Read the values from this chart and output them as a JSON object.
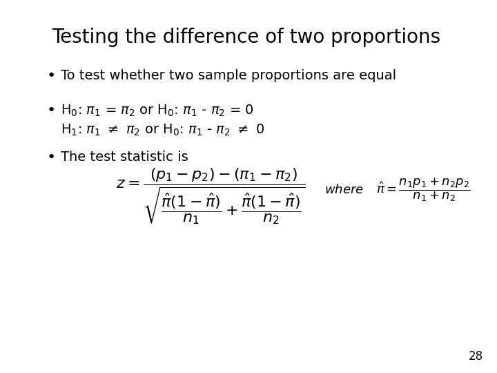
{
  "title": "Testing the difference of two proportions",
  "bullet1": "To test whether two sample proportions are equal",
  "bullet2_line1": "H$_0$: $\\pi_1$ = $\\pi_2$ or H$_0$: $\\pi_1$ - $\\pi_2$ = 0",
  "bullet2_line2": "H$_1$: $\\pi_1$ $\\neq$ $\\pi_2$ or H$_0$: $\\pi_1$ - $\\pi_2$ $\\neq$ 0",
  "bullet3": "The test statistic is",
  "page_number": "28",
  "bg_color": "#ffffff",
  "text_color": "#000000",
  "title_fontsize": 20,
  "body_fontsize": 14,
  "formula_fontsize": 15,
  "where_fontsize": 13,
  "page_fontsize": 12
}
